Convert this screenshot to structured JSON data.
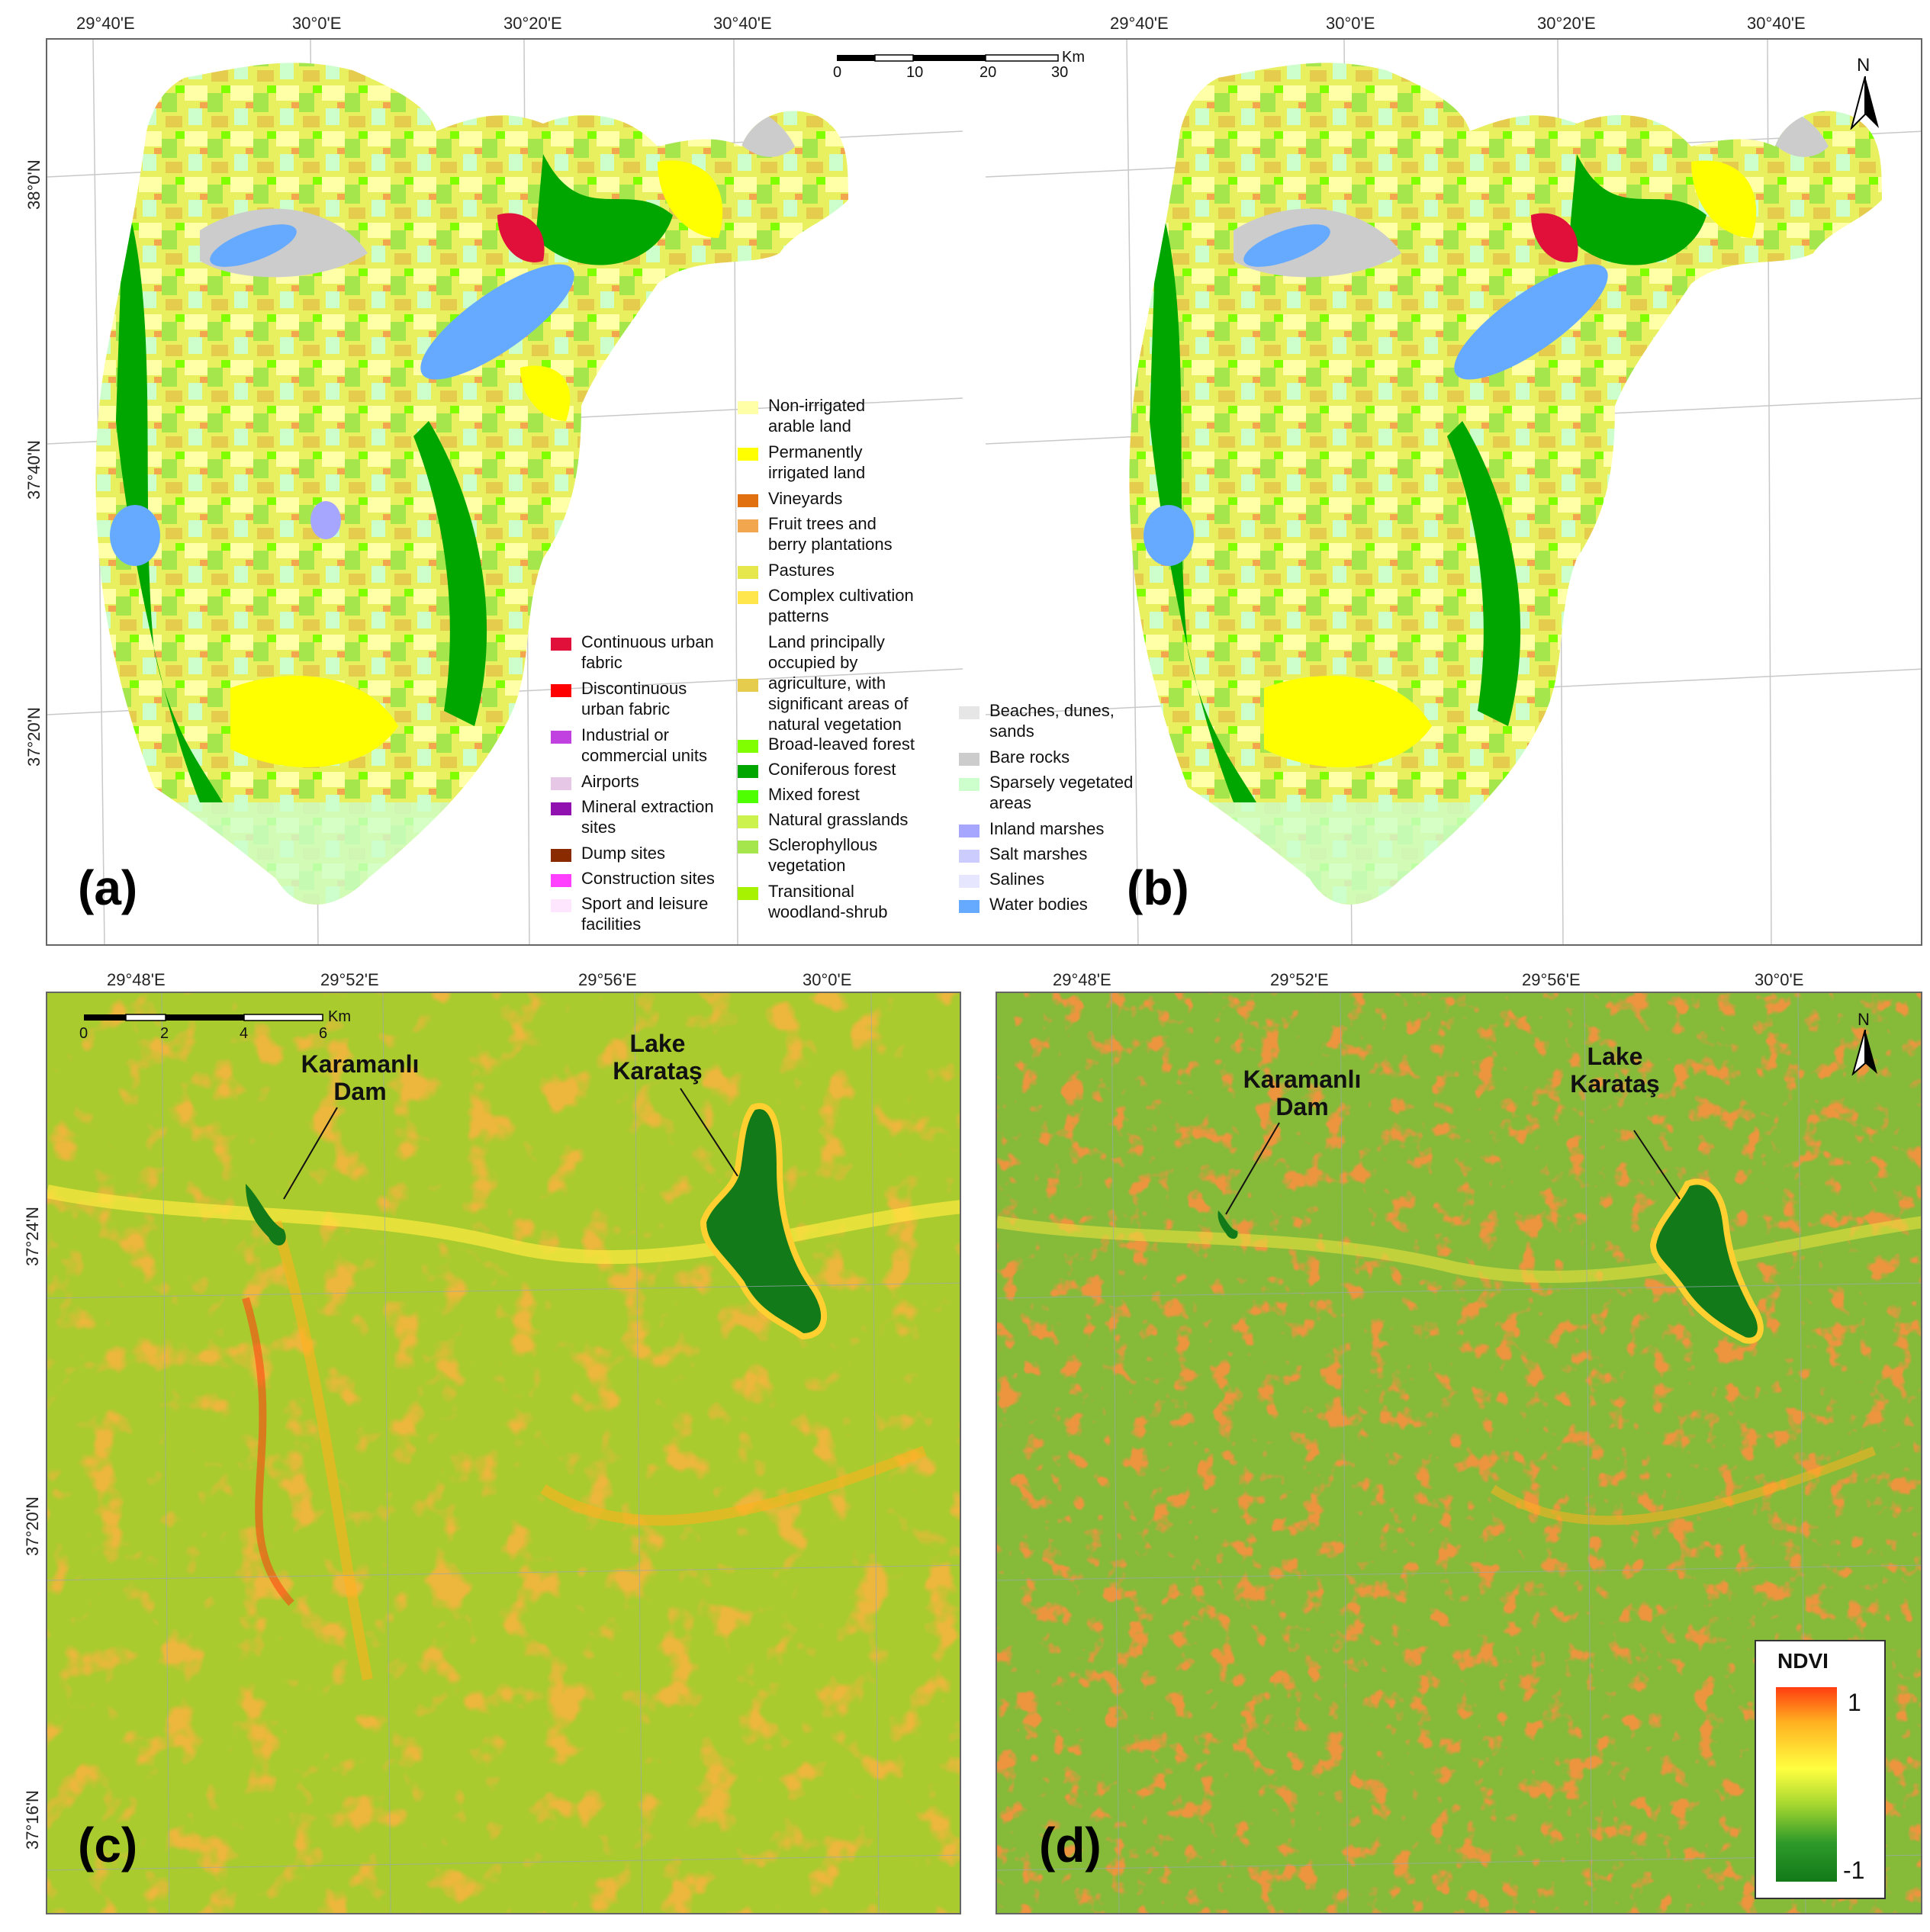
{
  "panels": {
    "a": {
      "letter": "(a)"
    },
    "b": {
      "letter": "(b)"
    },
    "c": {
      "letter": "(c)"
    },
    "d": {
      "letter": "(d)"
    }
  },
  "top_coords": {
    "lon": [
      "29°40'E",
      "30°0'E",
      "30°20'E",
      "30°40'E"
    ],
    "lat": [
      "38°0'N",
      "37°40'N",
      "37°20'N"
    ]
  },
  "bottom_coords": {
    "lon": [
      "29°48'E",
      "29°52'E",
      "29°56'E",
      "30°0'E"
    ],
    "lat": [
      "37°24'N",
      "37°20'N",
      "37°16'N"
    ]
  },
  "scalebar_top": {
    "unit": "Km",
    "ticks": [
      "0",
      "10",
      "20",
      "30"
    ]
  },
  "scalebar_bottom": {
    "unit": "Km",
    "ticks": [
      "0",
      "2",
      "4",
      "6"
    ]
  },
  "north_label": "N",
  "annotations": {
    "dam": "Karamanlı\nDam",
    "lake": "Lake\nKarataş"
  },
  "ndvi_legend": {
    "title": "NDVI",
    "max": "1",
    "min": "-1",
    "colors": [
      "#ff3d10",
      "#ffb020",
      "#ffff40",
      "#a8d830",
      "#2e9a2a",
      "#127a18"
    ]
  },
  "legend_col1": [
    {
      "label": "Continuous urban\nfabric",
      "color": "#e0103a"
    },
    {
      "label": "Discontinuous\nurban fabric",
      "color": "#ff0000"
    },
    {
      "label": "Industrial or\ncommercial units",
      "color": "#c040e0"
    },
    {
      "label": "Airports",
      "color": "#e6c8e6"
    },
    {
      "label": "Mineral extraction\nsites",
      "color": "#9010b0"
    },
    {
      "label": "Dump sites",
      "color": "#8a2a00"
    },
    {
      "label": "Construction sites",
      "color": "#ff40ff"
    },
    {
      "label": "Sport and leisure\nfacilities",
      "color": "#ffe6ff"
    }
  ],
  "legend_col2": [
    {
      "label": "Non-irrigated\narable land",
      "color": "#ffffa8"
    },
    {
      "label": "Permanently\nirrigated land",
      "color": "#ffff00"
    },
    {
      "label": "Vineyards",
      "color": "#e07010"
    },
    {
      "label": "Fruit trees and\nberry plantations",
      "color": "#f2a64d"
    },
    {
      "label": "Pastures",
      "color": "#e6e64d"
    },
    {
      "label": "Complex cultivation\npatterns",
      "color": "#ffe64d"
    },
    {
      "label": "Land principally\noccupied by\nagriculture, with\nsignificant areas of\nnatural vegetation",
      "color": "#e6cc4d"
    },
    {
      "label": "Broad-leaved forest",
      "color": "#80ff00"
    },
    {
      "label": "Coniferous forest",
      "color": "#00a600"
    },
    {
      "label": "Mixed forest",
      "color": "#4dff00"
    },
    {
      "label": "Natural grasslands",
      "color": "#ccf24d"
    },
    {
      "label": "Sclerophyllous\nvegetation",
      "color": "#a6e64d"
    },
    {
      "label": "Transitional\nwoodland-shrub",
      "color": "#a6f200"
    }
  ],
  "legend_col3": [
    {
      "label": "Beaches, dunes,\nsands",
      "color": "#e6e6e6"
    },
    {
      "label": "Bare rocks",
      "color": "#cccccc"
    },
    {
      "label": "Sparsely vegetated\nareas",
      "color": "#ccffcc"
    },
    {
      "label": "Inland marshes",
      "color": "#a6a6ff"
    },
    {
      "label": "Salt marshes",
      "color": "#ccccff"
    },
    {
      "label": "Salines",
      "color": "#e6e6ff"
    },
    {
      "label": "Water bodies",
      "color": "#66aaff"
    }
  ]
}
